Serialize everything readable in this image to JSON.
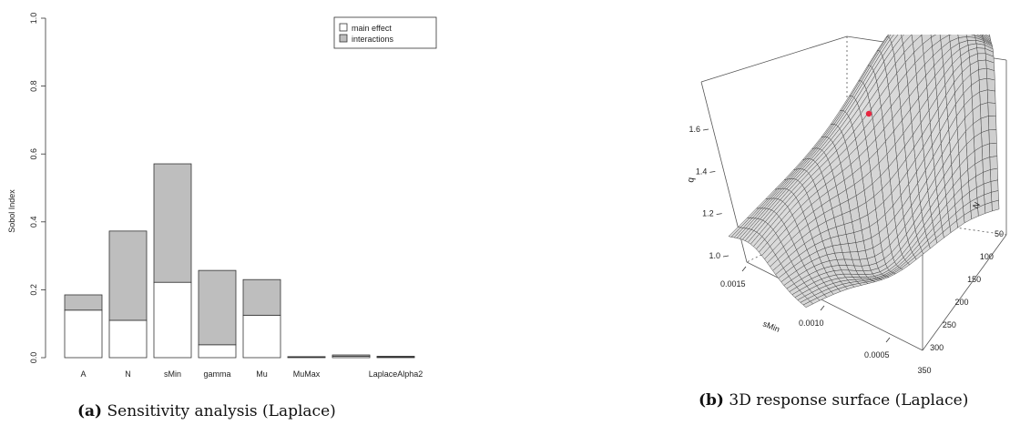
{
  "chart_data": [
    {
      "type": "bar",
      "stacked": true,
      "ylabel": "Sobol Index",
      "ylim": [
        0,
        1.0
      ],
      "yticks": [
        "0.0",
        "0.2",
        "0.4",
        "0.6",
        "0.8",
        "1.0"
      ],
      "categories": [
        "A",
        "N",
        "sMin",
        "gamma",
        "Mu",
        "MuMax",
        "",
        "LaplaceAlpha2"
      ],
      "series": [
        {
          "name": "main effect",
          "color": "#ffffff",
          "values": [
            0.14,
            0.11,
            0.222,
            0.038,
            0.125,
            0.002,
            0.004,
            0.002
          ]
        },
        {
          "name": "interactions",
          "color": "#bebebe",
          "values": [
            0.045,
            0.263,
            0.349,
            0.219,
            0.105,
            0.001,
            0.004,
            0.002
          ]
        }
      ],
      "legend_position": "top-right",
      "grid": false
    },
    {
      "type": "surface",
      "zlabel": "q",
      "xlabel": "sMin",
      "ylabel": "N",
      "z_ticks": [
        "1.0",
        "1.2",
        "1.4",
        "1.6"
      ],
      "x_ticks": [
        "0.0015",
        "0.0010",
        "0.0005"
      ],
      "y_ticks": [
        "50",
        "100",
        "150",
        "200",
        "250",
        "300",
        "350"
      ],
      "surface_color": "#d6d6d6",
      "marker_color": "#e8253f"
    }
  ],
  "captions": {
    "a_label": "(a)",
    "a_text": "Sensitivity analysis (Laplace)",
    "b_label": "(b)",
    "b_text": "3D response surface (Laplace)"
  }
}
